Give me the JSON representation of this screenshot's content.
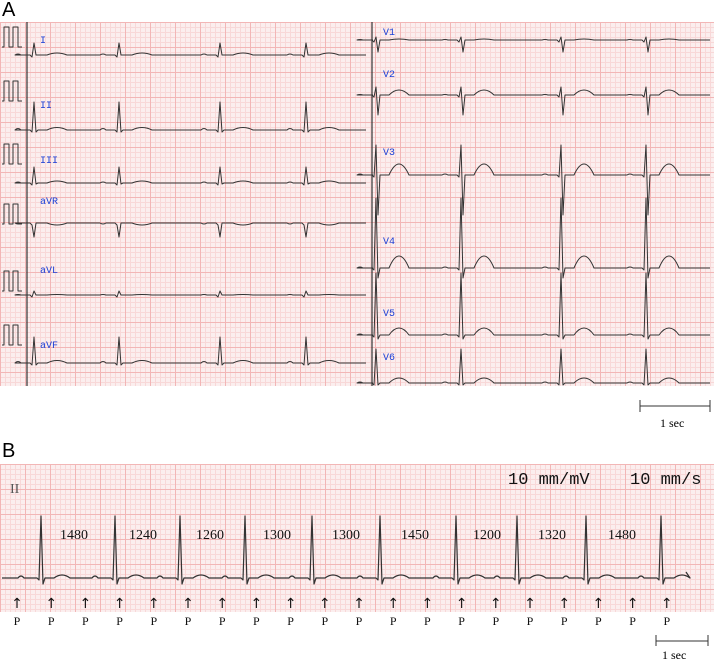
{
  "panel_a": {
    "label": "A",
    "leads_left": [
      "I",
      "II",
      "III",
      "aVR",
      "aVL",
      "aVF"
    ],
    "leads_right": [
      "V1",
      "V2",
      "V3",
      "V4",
      "V5",
      "V6"
    ],
    "scale_label": "1 sec"
  },
  "panel_b": {
    "label": "B",
    "lead": "II",
    "gain": "10 mm/mV",
    "speed": "10 mm/s",
    "rr_intervals": [
      "1480",
      "1240",
      "1260",
      "1300",
      "1300",
      "1450",
      "1200",
      "1320",
      "1480"
    ],
    "p_label": "P",
    "p_count": 20,
    "scale_label": "1 sec"
  },
  "colors": {
    "trace": "#333333",
    "lead_label": "#1a3fd6",
    "grid_minor": "#f8d8d8",
    "grid_major": "#f2b6b6"
  }
}
